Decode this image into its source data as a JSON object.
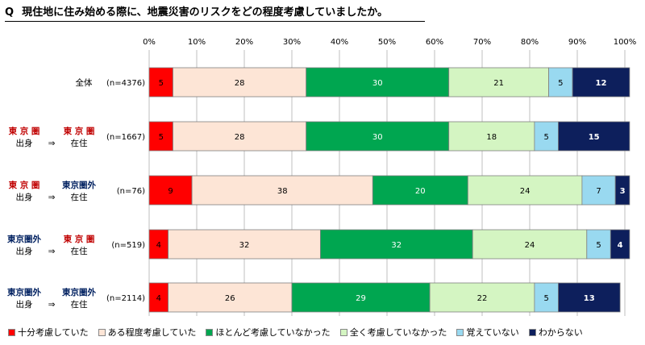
{
  "title": {
    "q": "Q",
    "text": "現住地に住み始める際に、地震災害のリスクをどの程度考慮していましたか。"
  },
  "colors": [
    "#ff0000",
    "#fde5d6",
    "#00a650",
    "#d4f5c2",
    "#99d9f0",
    "#0d1f5c"
  ],
  "chart_data": {
    "type": "bar",
    "orientation": "horizontal",
    "stacked": true,
    "percent_stacked": true,
    "xlim": [
      0,
      100
    ],
    "x_ticks": [
      "0%",
      "10%",
      "20%",
      "30%",
      "40%",
      "50%",
      "60%",
      "70%",
      "80%",
      "90%",
      "100%"
    ],
    "grid": true,
    "legend_position": "bottom",
    "rows": [
      {
        "label_lines": [
          [
            "全体"
          ]
        ],
        "n": "(n=4376)",
        "values": [
          5,
          28,
          30,
          21,
          5,
          12
        ]
      },
      {
        "label_lines": [
          [
            "東 京 圏",
            "出身"
          ],
          [
            "東 京 圏",
            "在住"
          ]
        ],
        "n": "(n=1667)",
        "values": [
          5,
          28,
          30,
          18,
          5,
          15
        ]
      },
      {
        "label_lines": [
          [
            "東 京 圏",
            "出身"
          ],
          [
            "東京圏外",
            "在住"
          ]
        ],
        "n": "(n=76)",
        "values": [
          9,
          38,
          20,
          24,
          7,
          3
        ]
      },
      {
        "label_lines": [
          [
            "東京圏外",
            "出身"
          ],
          [
            "東 京 圏",
            "在住"
          ]
        ],
        "n": "(n=519)",
        "values": [
          4,
          32,
          32,
          24,
          5,
          4
        ]
      },
      {
        "label_lines": [
          [
            "東京圏外",
            "出身"
          ],
          [
            "東京圏外",
            "在住"
          ]
        ],
        "n": "(n=2114)",
        "values": [
          4,
          26,
          29,
          22,
          5,
          13
        ]
      }
    ],
    "arrow": "⇒",
    "series": [
      {
        "name": "十分考慮していた"
      },
      {
        "name": "ある程度考慮していた"
      },
      {
        "name": "ほとんど考慮していなかった"
      },
      {
        "name": "全く考慮していなかった"
      },
      {
        "name": "覚えていない"
      },
      {
        "name": "わからない"
      }
    ]
  }
}
